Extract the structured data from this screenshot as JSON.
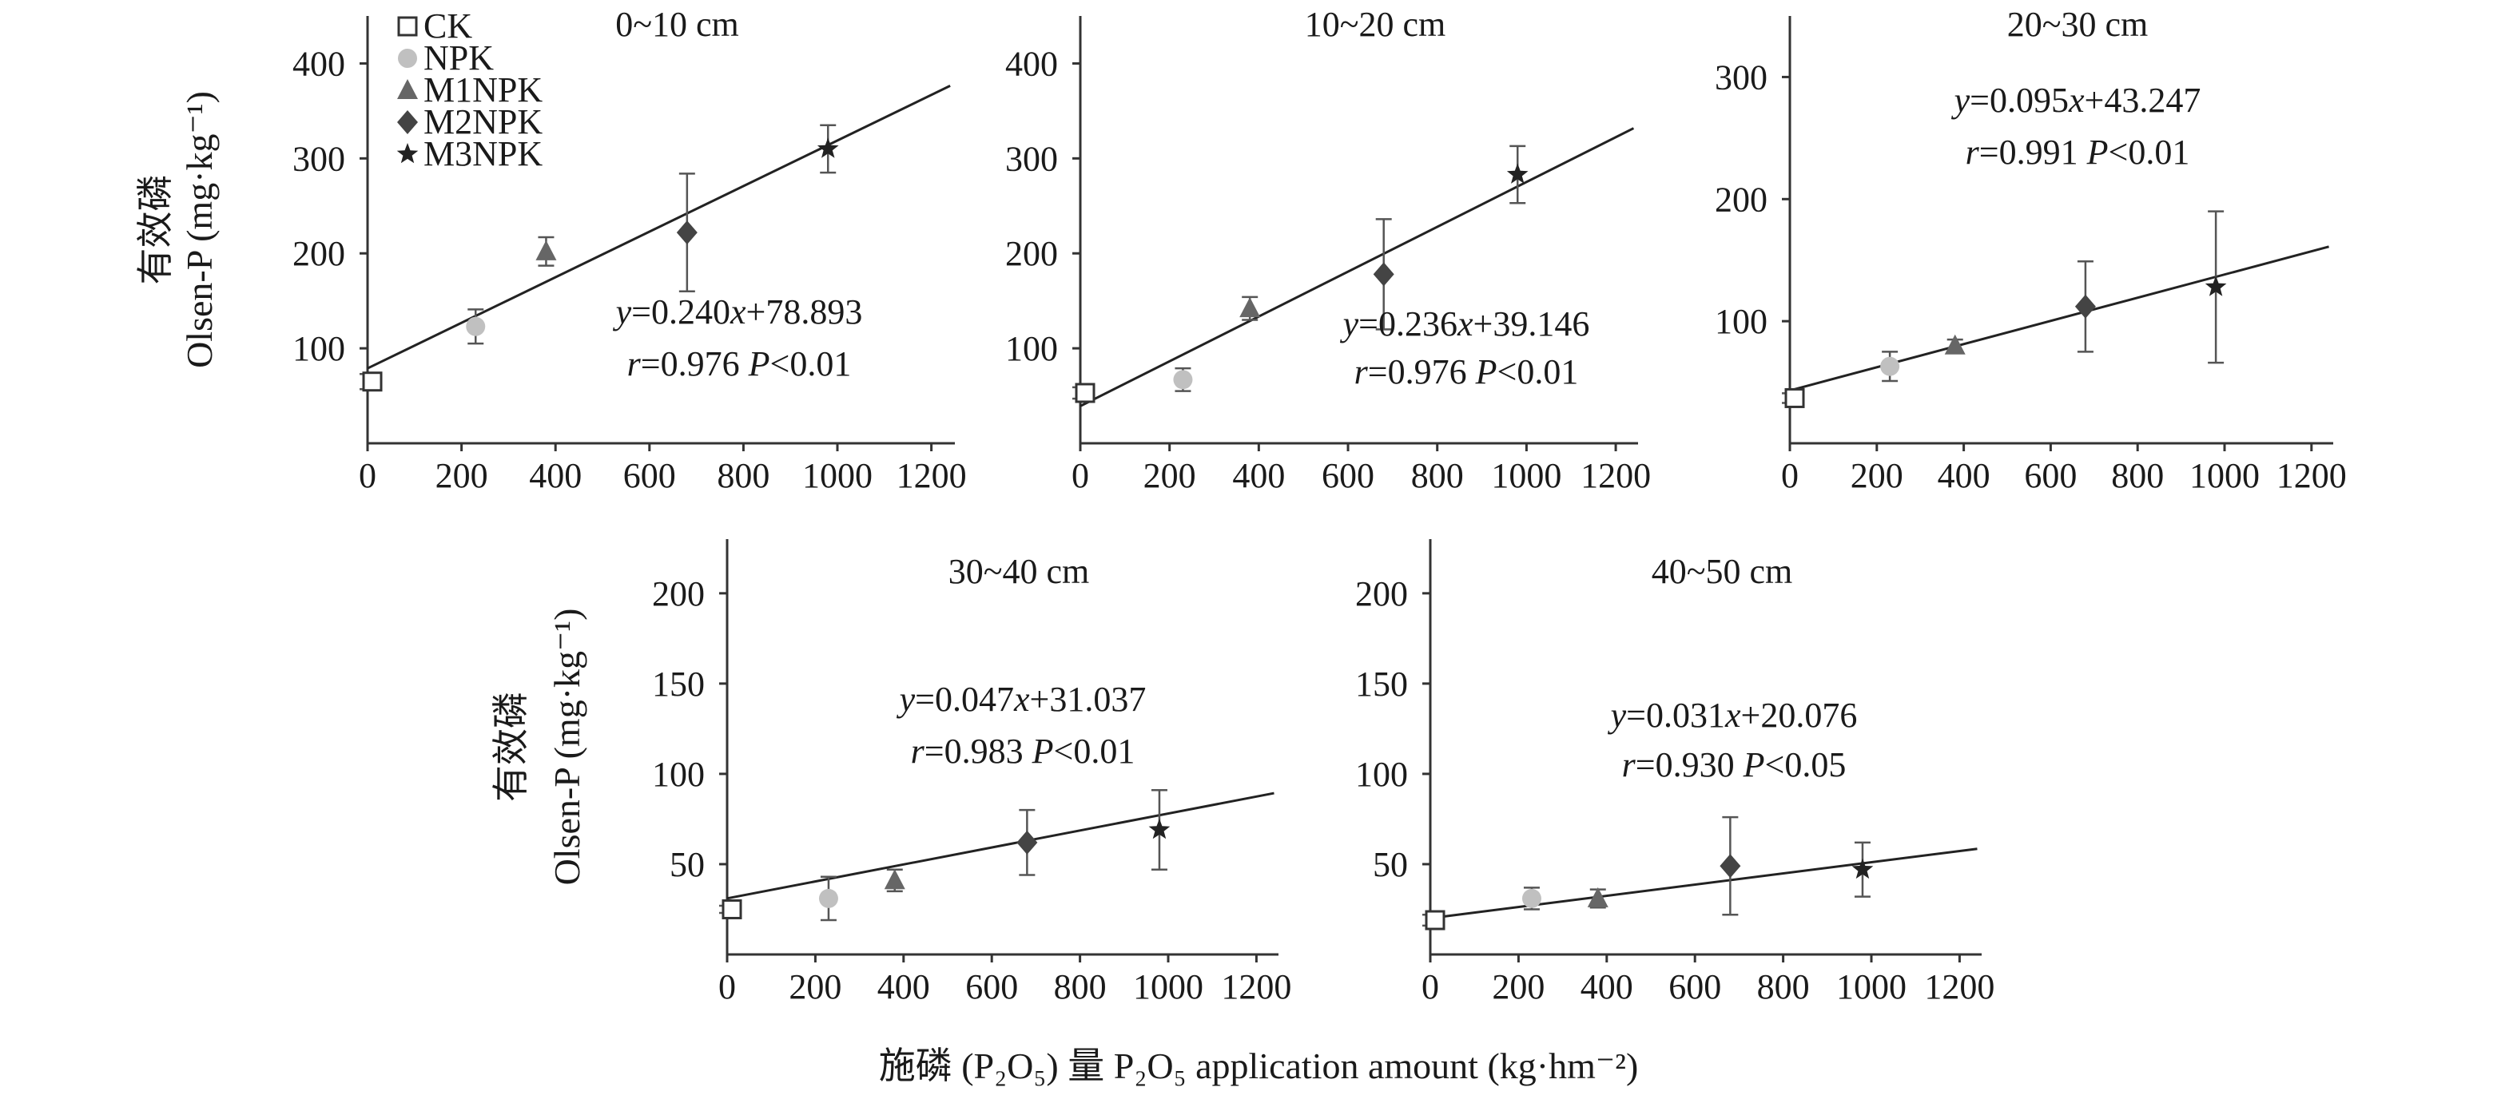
{
  "figure": {
    "xlabel": "施磷 (P₂O₅) 量 P₂O₅ application amount (kg·hm⁻²)",
    "ylabel_cn": "有效磷",
    "ylabel_en": "Olsen-P (mg·kg⁻¹)",
    "legend": [
      {
        "name": "CK",
        "marker": "square-open",
        "color": "#333333"
      },
      {
        "name": "NPK",
        "marker": "circle",
        "color": "#c0c0c0"
      },
      {
        "name": "M1NPK",
        "marker": "triangle",
        "color": "#666666"
      },
      {
        "name": "M2NPK",
        "marker": "diamond",
        "color": "#444444"
      },
      {
        "name": "M3NPK",
        "marker": "star",
        "color": "#222222"
      }
    ]
  },
  "chart_data": [
    {
      "type": "scatter",
      "title": "0~10 cm",
      "x": [
        0,
        230,
        380,
        680,
        980
      ],
      "y": [
        65,
        123,
        202,
        222,
        310
      ],
      "err": [
        8,
        18,
        15,
        62,
        25
      ],
      "fit": {
        "slope": 0.24,
        "intercept": 78.893,
        "x_end": 1240
      },
      "eq_line1": "y=0.240x+78.893",
      "eq_line2": "r=0.976 P<0.01",
      "xticks": [
        0,
        200,
        400,
        600,
        800,
        1000,
        1200
      ],
      "yticks": [
        100,
        200,
        300,
        400
      ],
      "xlim": [
        0,
        1250
      ],
      "ylim": [
        0,
        450
      ],
      "legend": true
    },
    {
      "type": "scatter",
      "title": "10~20 cm",
      "x": [
        0,
        230,
        380,
        680,
        980
      ],
      "y": [
        53,
        67,
        142,
        178,
        283
      ],
      "err": [
        6,
        12,
        12,
        58,
        30
      ],
      "fit": {
        "slope": 0.236,
        "intercept": 39.146,
        "x_end": 1240
      },
      "eq_line1": "y=0.236x+39.146",
      "eq_line2": "r=0.976 P<0.01",
      "xticks": [
        0,
        200,
        400,
        600,
        800,
        1000,
        1200
      ],
      "yticks": [
        100,
        200,
        300,
        400
      ],
      "xlim": [
        0,
        1250
      ],
      "ylim": [
        0,
        450
      ]
    },
    {
      "type": "scatter",
      "title": "20~30 cm",
      "x": [
        0,
        230,
        380,
        680,
        980
      ],
      "y": [
        37,
        63,
        80,
        112,
        128
      ],
      "err": [
        4,
        12,
        5,
        37,
        62
      ],
      "fit": {
        "slope": 0.095,
        "intercept": 43.247,
        "x_end": 1240
      },
      "eq_line1": "y=0.095x+43.247",
      "eq_line2": "r=0.991 P<0.01",
      "xticks": [
        0,
        200,
        400,
        600,
        800,
        1000,
        1200
      ],
      "yticks": [
        100,
        200,
        300
      ],
      "xlim": [
        0,
        1250
      ],
      "ylim": [
        0,
        350
      ]
    },
    {
      "type": "scatter",
      "title": "30~40 cm",
      "x": [
        0,
        230,
        380,
        680,
        980
      ],
      "y": [
        25,
        31,
        41,
        62,
        69
      ],
      "err": [
        2,
        12,
        6,
        18,
        22
      ],
      "fit": {
        "slope": 0.047,
        "intercept": 31.037,
        "x_end": 1240
      },
      "eq_line1": "y=0.047x+31.037",
      "eq_line2": "r=0.983 P<0.01",
      "xticks": [
        0,
        200,
        400,
        600,
        800,
        1000,
        1200
      ],
      "yticks": [
        50,
        100,
        150,
        200
      ],
      "xlim": [
        0,
        1250
      ],
      "ylim": [
        0,
        230
      ]
    },
    {
      "type": "scatter",
      "title": "40~50 cm",
      "x": [
        0,
        230,
        380,
        680,
        980
      ],
      "y": [
        19,
        31,
        31,
        49,
        47
      ],
      "err": [
        3,
        6,
        5,
        27,
        15
      ],
      "fit": {
        "slope": 0.031,
        "intercept": 20.076,
        "x_end": 1240
      },
      "eq_line1": "y=0.031x+20.076",
      "eq_line2": "r=0.930 P<0.05",
      "xticks": [
        0,
        200,
        400,
        600,
        800,
        1000,
        1200
      ],
      "yticks": [
        50,
        100,
        150,
        200
      ],
      "xlim": [
        0,
        1250
      ],
      "ylim": [
        0,
        230
      ]
    }
  ]
}
